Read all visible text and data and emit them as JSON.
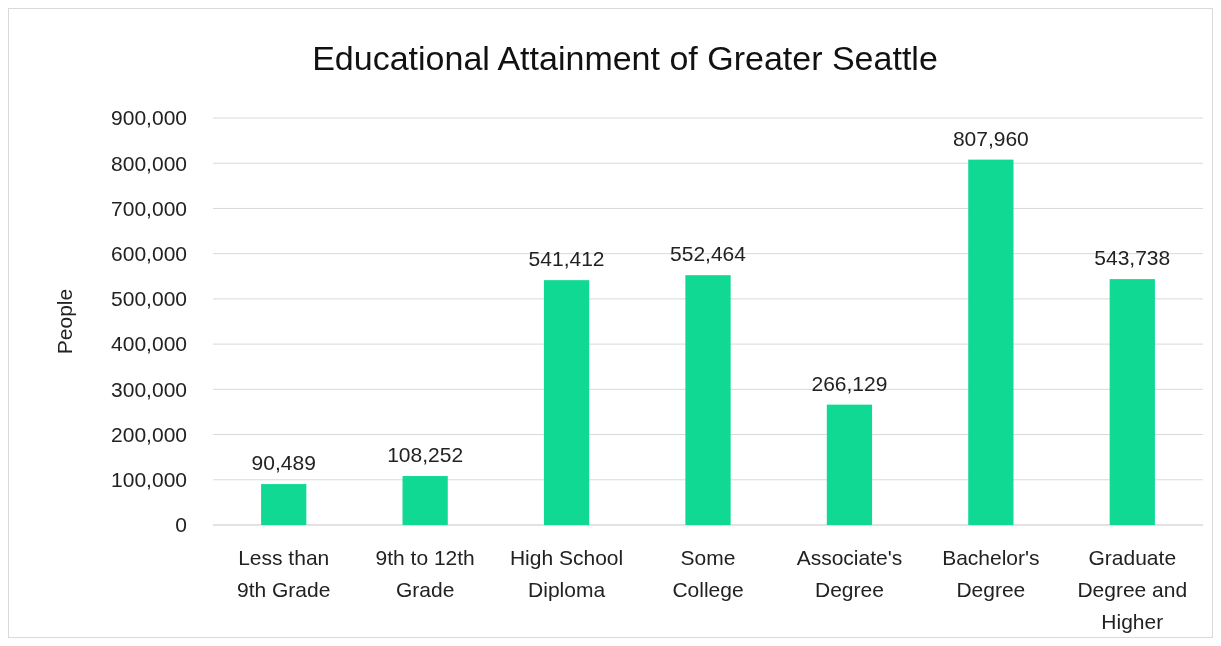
{
  "chart_data": {
    "type": "bar",
    "title": "Educational Attainment of Greater Seattle",
    "ylabel": "People",
    "categories": [
      "Less than 9th Grade",
      "9th to 12th Grade",
      "High School Diploma",
      "Some College",
      "Associate's Degree",
      "Bachelor's Degree",
      "Graduate Degree and Higher"
    ],
    "values": [
      90489,
      108252,
      541412,
      552464,
      266129,
      807960,
      543738
    ],
    "color": "#10d994",
    "ylim": [
      0,
      900000
    ],
    "yticks": [
      {
        "value": 0,
        "label": "0"
      },
      {
        "value": 100000,
        "label": "100,000"
      },
      {
        "value": 200000,
        "label": "200,000"
      },
      {
        "value": 300000,
        "label": "300,000"
      },
      {
        "value": 400000,
        "label": "400,000"
      },
      {
        "value": 500000,
        "label": "500,000"
      },
      {
        "value": 600000,
        "label": "600,000"
      },
      {
        "value": 700000,
        "label": "700,000"
      },
      {
        "value": 800000,
        "label": "800,000"
      },
      {
        "value": 900000,
        "label": "900,000"
      }
    ],
    "value_labels": [
      "90,489",
      "108,252",
      "541,412",
      "552,464",
      "266,129",
      "807,960",
      "543,738"
    ],
    "grid": "y"
  }
}
